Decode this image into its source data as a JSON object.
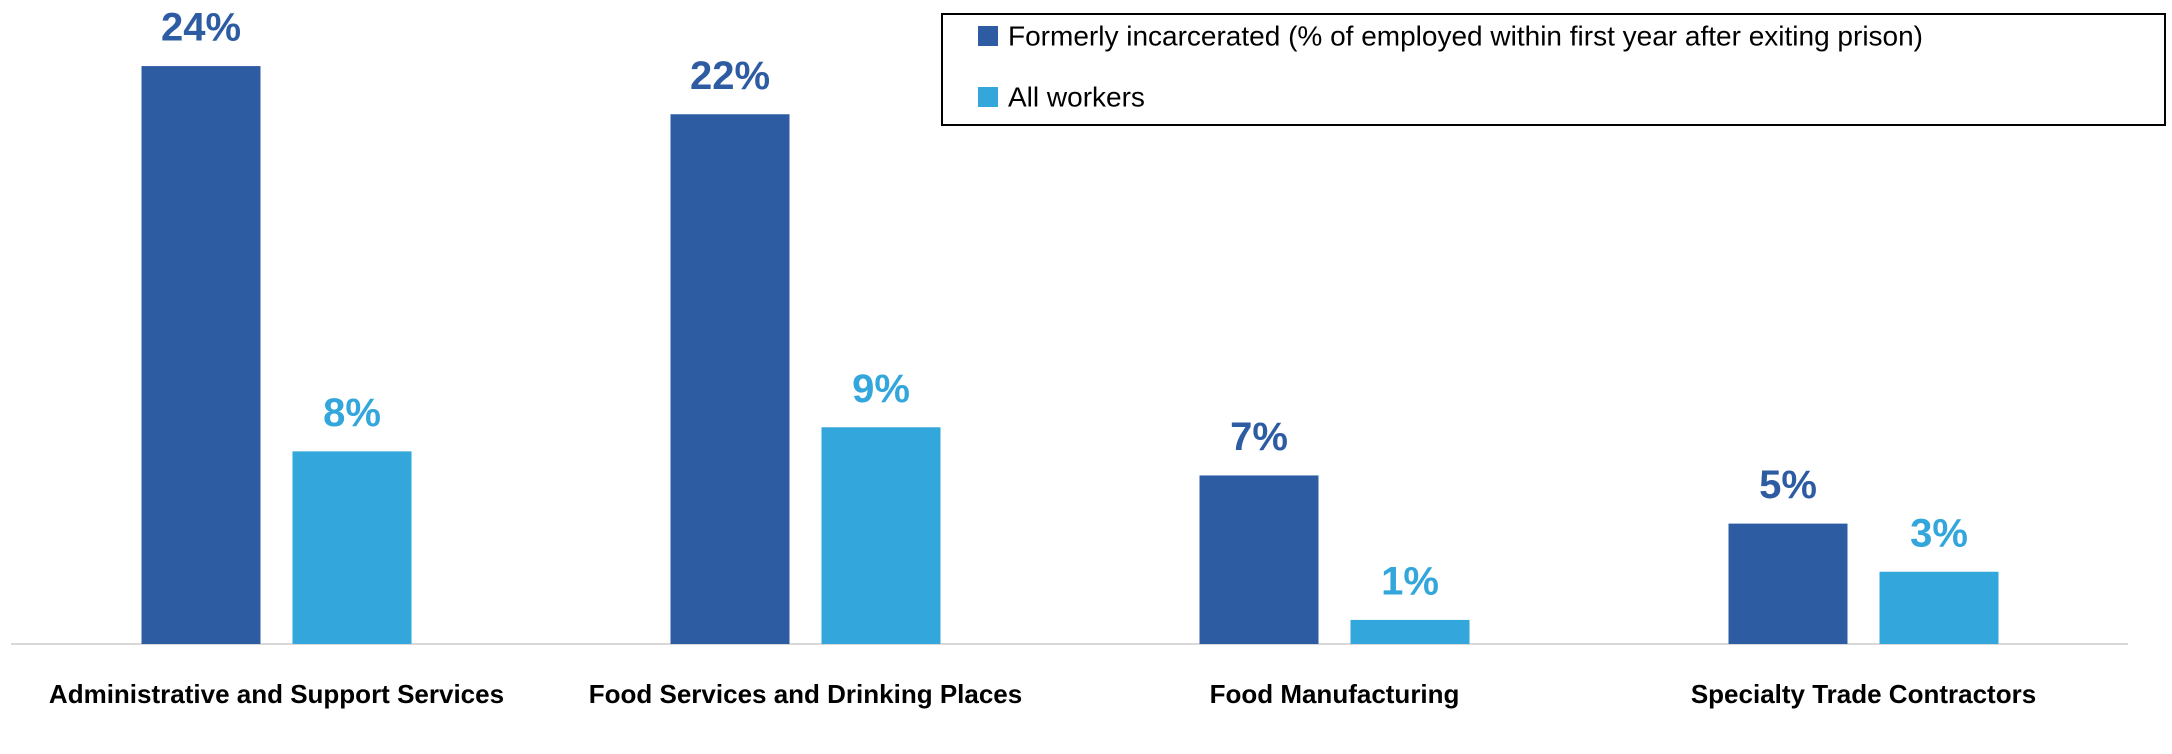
{
  "chart_data": {
    "type": "bar",
    "categories": [
      "Administrative and Support Services",
      "Food Services and Drinking Places",
      "Food Manufacturing",
      "Specialty Trade Contractors"
    ],
    "series": [
      {
        "name": "Formerly incarcerated (% of employed within first year after exiting prison)",
        "color": "#2e5ca3",
        "values": [
          24,
          22,
          7,
          5
        ],
        "value_labels": [
          "24%",
          "22%",
          "7%",
          "5%"
        ]
      },
      {
        "name": "All workers",
        "color": "#33a6db",
        "values": [
          8,
          9,
          1,
          3
        ],
        "value_labels": [
          "8%",
          "9%",
          "1%",
          "3%"
        ]
      }
    ],
    "ylim": [
      0,
      25
    ],
    "legend": "upper right"
  }
}
